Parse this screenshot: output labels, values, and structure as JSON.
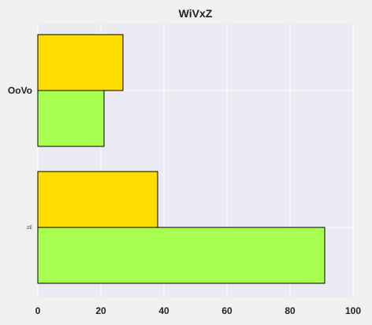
{
  "chart_data": {
    "type": "bar",
    "orientation": "horizontal",
    "title": "WiVxZ",
    "xlabel": "",
    "ylabel": "",
    "categories": [
      "OoVo",
      "zE"
    ],
    "series": [
      {
        "values": [
          27,
          38
        ],
        "color": "#ffdd00"
      },
      {
        "values": [
          21,
          91
        ],
        "color": "#a8ff50"
      }
    ],
    "xlim": [
      0,
      100
    ],
    "xticks": [
      0,
      20,
      40,
      60,
      80,
      100
    ],
    "grid": true,
    "legend": "none",
    "background": "#eaeaf2",
    "edge_color": "#000000"
  }
}
